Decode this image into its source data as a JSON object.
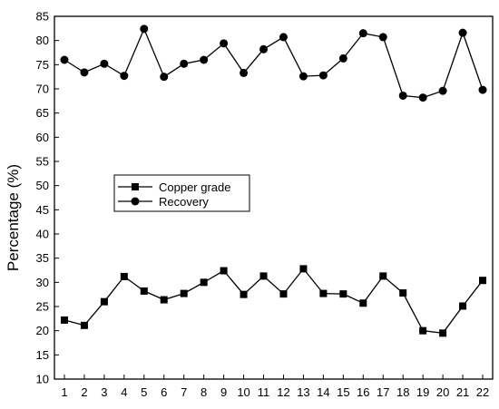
{
  "chart_data": {
    "type": "line",
    "title": "",
    "xlabel": "",
    "ylabel": "Percentage (%)",
    "xlim": [
      0.5,
      22.5
    ],
    "ylim": [
      10,
      85
    ],
    "yticks": [
      10,
      15,
      20,
      25,
      30,
      35,
      40,
      45,
      50,
      55,
      60,
      65,
      70,
      75,
      80,
      85
    ],
    "categories": [
      "1",
      "2",
      "3",
      "4",
      "5",
      "6",
      "7",
      "8",
      "9",
      "10",
      "11",
      "12",
      "13",
      "14",
      "15",
      "16",
      "17",
      "18",
      "19",
      "20",
      "21",
      "22"
    ],
    "grid": false,
    "legend_position": "middle-left",
    "series": [
      {
        "name": "Copper grade",
        "marker": "square",
        "color": "#000000",
        "values": [
          22.2,
          21.1,
          26.0,
          31.2,
          28.2,
          26.4,
          27.7,
          30.0,
          32.4,
          27.5,
          31.3,
          27.6,
          32.8,
          27.7,
          27.6,
          25.7,
          31.3,
          27.8,
          20.0,
          19.5,
          25.1,
          30.4
        ]
      },
      {
        "name": "Recovery",
        "marker": "circle",
        "color": "#000000",
        "values": [
          76.0,
          73.4,
          75.2,
          72.7,
          82.4,
          72.5,
          75.2,
          76.0,
          79.4,
          73.3,
          78.2,
          80.7,
          72.6,
          72.8,
          76.3,
          81.5,
          80.7,
          68.6,
          68.2,
          69.6,
          81.6,
          69.8
        ]
      }
    ]
  }
}
